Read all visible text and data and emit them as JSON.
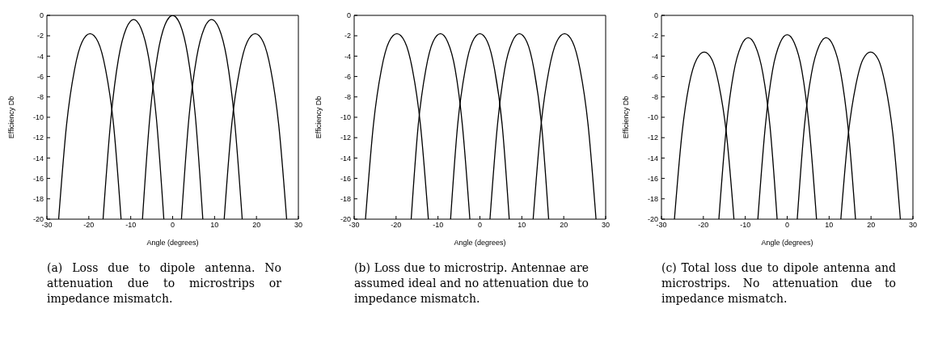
{
  "chart_data": [
    {
      "type": "line",
      "xlabel": "Angle (degrees)",
      "ylabel": "Efficiency Db",
      "xlim": [
        -30,
        30
      ],
      "xticks": [
        -30,
        -20,
        -10,
        0,
        10,
        20,
        30
      ],
      "ylim": [
        -20,
        0
      ],
      "yticks": [
        -20,
        -18,
        -16,
        -14,
        -12,
        -10,
        -8,
        -6,
        -4,
        -2,
        0
      ],
      "grid": false,
      "legend": false,
      "annotations": [
        "(a) Loss due to dipole antenna. No attenuation due to microstrips or impedance mismatch."
      ],
      "series": [
        {
          "color": "#000000",
          "x": [
            -27.2,
            -25.3,
            -23.4,
            -21.6,
            -19.7,
            -17.8,
            -16.0,
            -14.1,
            -12.3
          ],
          "values": [
            -20,
            -10.7,
            -5.3,
            -2.6,
            -1.8,
            -2.6,
            -5.3,
            -10.7,
            -20
          ]
        },
        {
          "color": "#000000",
          "x": [
            -16.6,
            -14.7,
            -12.9,
            -11.1,
            -9.3,
            -7.5,
            -5.7,
            -3.9,
            -2.1
          ],
          "values": [
            -20,
            -10.0,
            -4.2,
            -1.3,
            -0.4,
            -1.3,
            -4.2,
            -10.0,
            -20
          ]
        },
        {
          "color": "#000000",
          "x": [
            -7.2,
            -5.4,
            -3.6,
            -1.8,
            0,
            1.8,
            3.6,
            5.4,
            7.2
          ],
          "values": [
            -20,
            -9.8,
            -3.9,
            -0.9,
            0,
            -0.9,
            -3.9,
            -9.8,
            -20
          ]
        },
        {
          "color": "#000000",
          "x": [
            2.1,
            3.9,
            5.7,
            7.5,
            9.3,
            11.1,
            12.9,
            14.7,
            16.6
          ],
          "values": [
            -20,
            -10.0,
            -4.2,
            -1.3,
            -0.4,
            -1.3,
            -4.2,
            -10.0,
            -20
          ]
        },
        {
          "color": "#000000",
          "x": [
            12.3,
            14.1,
            16.0,
            17.8,
            19.7,
            21.6,
            23.4,
            25.3,
            27.2
          ],
          "values": [
            -20,
            -10.7,
            -5.3,
            -2.6,
            -1.8,
            -2.6,
            -5.3,
            -10.7,
            -20
          ]
        }
      ]
    },
    {
      "type": "line",
      "xlabel": "Angle (degrees)",
      "ylabel": "Efficiency Db",
      "xlim": [
        -30,
        30
      ],
      "xticks": [
        -30,
        -20,
        -10,
        0,
        10,
        20,
        30
      ],
      "ylim": [
        -20,
        0
      ],
      "yticks": [
        -20,
        -18,
        -16,
        -14,
        -12,
        -10,
        -8,
        -6,
        -4,
        -2,
        0
      ],
      "grid": false,
      "legend": false,
      "annotations": [
        "(b) Loss due to microstrip. Antennae are assumed ideal and no attenuation due to impedance mismatch."
      ],
      "series": [
        {
          "color": "#000000",
          "x": [
            -27.3,
            -25.4,
            -23.5,
            -21.7,
            -19.8,
            -17.9,
            -16.1,
            -14.2,
            -12.3
          ],
          "values": [
            -20,
            -10.7,
            -5.3,
            -2.6,
            -1.8,
            -2.6,
            -5.3,
            -10.7,
            -20
          ]
        },
        {
          "color": "#000000",
          "x": [
            -16.4,
            -14.7,
            -12.9,
            -11.2,
            -9.4,
            -7.7,
            -5.9,
            -4.2,
            -2.4
          ],
          "values": [
            -20,
            -10.7,
            -5.3,
            -2.6,
            -1.8,
            -2.6,
            -5.3,
            -10.7,
            -20
          ]
        },
        {
          "color": "#000000",
          "x": [
            -7.0,
            -5.3,
            -3.5,
            -1.8,
            0,
            1.8,
            3.5,
            5.3,
            7.0
          ],
          "values": [
            -20,
            -10.7,
            -5.3,
            -2.6,
            -1.8,
            -2.6,
            -5.3,
            -10.7,
            -20
          ]
        },
        {
          "color": "#000000",
          "x": [
            2.4,
            4.2,
            5.9,
            7.7,
            9.4,
            11.2,
            12.9,
            14.7,
            16.4
          ],
          "values": [
            -20,
            -10.7,
            -5.3,
            -2.6,
            -1.8,
            -2.6,
            -5.3,
            -10.7,
            -20
          ]
        },
        {
          "color": "#000000",
          "x": [
            12.7,
            14.6,
            16.5,
            18.3,
            20.2,
            22.1,
            23.9,
            25.8,
            27.7
          ],
          "values": [
            -20,
            -10.7,
            -5.3,
            -2.6,
            -1.8,
            -2.6,
            -5.3,
            -10.7,
            -20
          ]
        }
      ]
    },
    {
      "type": "line",
      "xlabel": "Angle (degrees)",
      "ylabel": "Efficiency Db",
      "xlim": [
        -30,
        30
      ],
      "xticks": [
        -30,
        -20,
        -10,
        0,
        10,
        20,
        30
      ],
      "ylim": [
        -20,
        0
      ],
      "yticks": [
        -20,
        -18,
        -16,
        -14,
        -12,
        -10,
        -8,
        -6,
        -4,
        -2,
        0
      ],
      "grid": false,
      "legend": false,
      "annotations": [
        "(c) Total loss due to dipole antenna and microstrips. No attenuation due to impedance mismatch."
      ],
      "series": [
        {
          "color": "#000000",
          "x": [
            -26.9,
            -25.1,
            -23.4,
            -21.6,
            -19.8,
            -18.0,
            -16.3,
            -14.5,
            -12.7
          ],
          "values": [
            -20,
            -11.6,
            -6.8,
            -4.3,
            -3.6,
            -4.3,
            -6.8,
            -11.6,
            -20
          ]
        },
        {
          "color": "#000000",
          "x": [
            -16.3,
            -14.5,
            -12.8,
            -11.0,
            -9.3,
            -7.6,
            -5.8,
            -4.1,
            -2.4
          ],
          "values": [
            -20,
            -10.9,
            -5.7,
            -3.0,
            -2.2,
            -3.0,
            -5.7,
            -10.9,
            -20
          ]
        },
        {
          "color": "#000000",
          "x": [
            -7.0,
            -5.2,
            -3.5,
            -1.7,
            0,
            1.7,
            3.5,
            5.2,
            7.0
          ],
          "values": [
            -20,
            -10.8,
            -5.4,
            -2.7,
            -1.9,
            -2.7,
            -5.4,
            -10.8,
            -20
          ]
        },
        {
          "color": "#000000",
          "x": [
            2.4,
            4.1,
            5.8,
            7.6,
            9.3,
            11.0,
            12.8,
            14.5,
            16.3
          ],
          "values": [
            -20,
            -10.9,
            -5.7,
            -3.0,
            -2.2,
            -3.0,
            -5.7,
            -10.9,
            -20
          ]
        },
        {
          "color": "#000000",
          "x": [
            12.8,
            14.6,
            16.4,
            18.1,
            19.9,
            21.7,
            23.4,
            25.2,
            27.0
          ],
          "values": [
            -20,
            -11.6,
            -6.8,
            -4.3,
            -3.6,
            -4.3,
            -6.8,
            -11.6,
            -20
          ]
        }
      ]
    }
  ]
}
